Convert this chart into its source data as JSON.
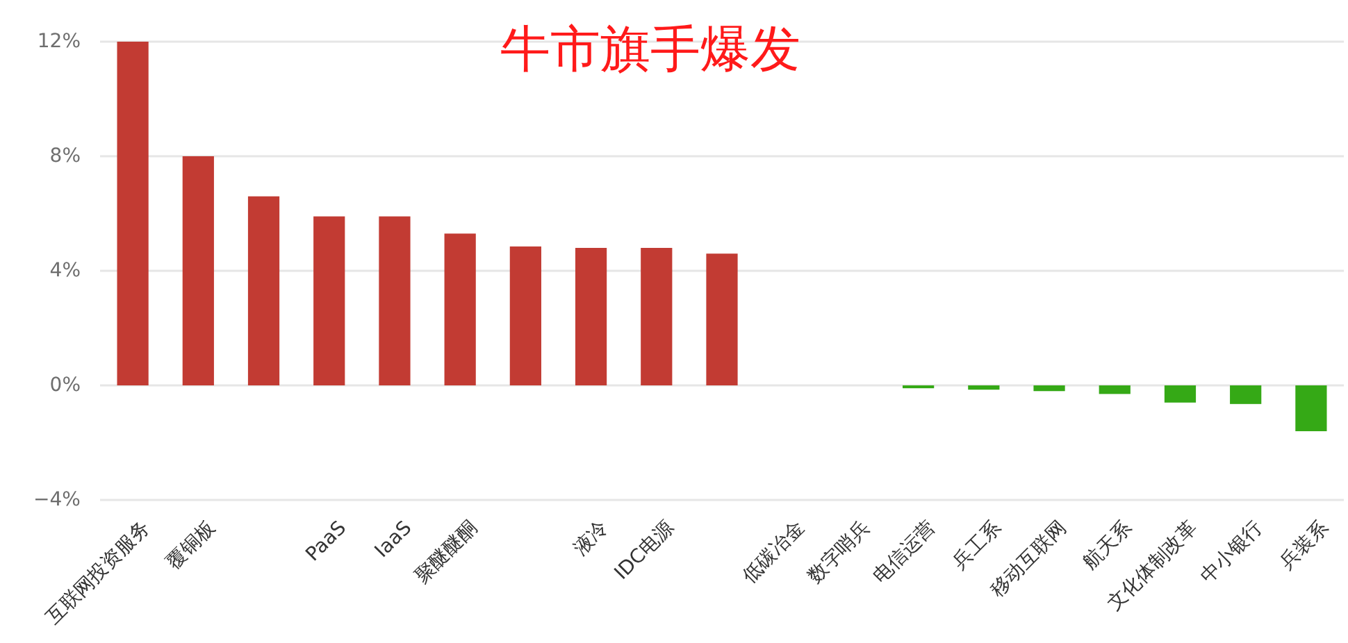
{
  "chart_data": {
    "type": "bar",
    "title": "牛市旗手爆发",
    "categories": [
      "互联网投资服务",
      "覆铜板",
      null,
      "PaaS",
      "IaaS",
      "聚醚醚酮",
      null,
      "液冷",
      "IDC电源",
      null,
      "低碳冶金",
      "数字哨兵",
      "电信运营",
      "兵工系",
      "移动互联网",
      "航天系",
      "文化体制改革",
      "中小银行",
      "兵装系"
    ],
    "values": [
      12.0,
      8.0,
      6.6,
      5.9,
      5.9,
      5.3,
      4.85,
      4.8,
      4.8,
      4.6,
      0,
      0,
      -0.1,
      -0.15,
      -0.2,
      -0.3,
      -0.6,
      -0.65,
      -1.6
    ],
    "colors": [
      "#c23b33",
      "#c23b33",
      "#c23b33",
      "#c23b33",
      "#c23b33",
      "#c23b33",
      "#c23b33",
      "#c23b33",
      "#c23b33",
      "#c23b33",
      "#c23b33",
      "#c23b33",
      "#35a916",
      "#35a916",
      "#35a916",
      "#35a916",
      "#35a916",
      "#35a916",
      "#35a916"
    ],
    "ylim": [
      -4,
      12
    ],
    "yticks": [
      {
        "value": 12,
        "label": "12%"
      },
      {
        "value": 8,
        "label": "8%"
      },
      {
        "value": 4,
        "label": "4%"
      },
      {
        "value": 0,
        "label": "0%"
      },
      {
        "value": -4,
        "label": "−4%"
      }
    ],
    "grid": "y"
  }
}
